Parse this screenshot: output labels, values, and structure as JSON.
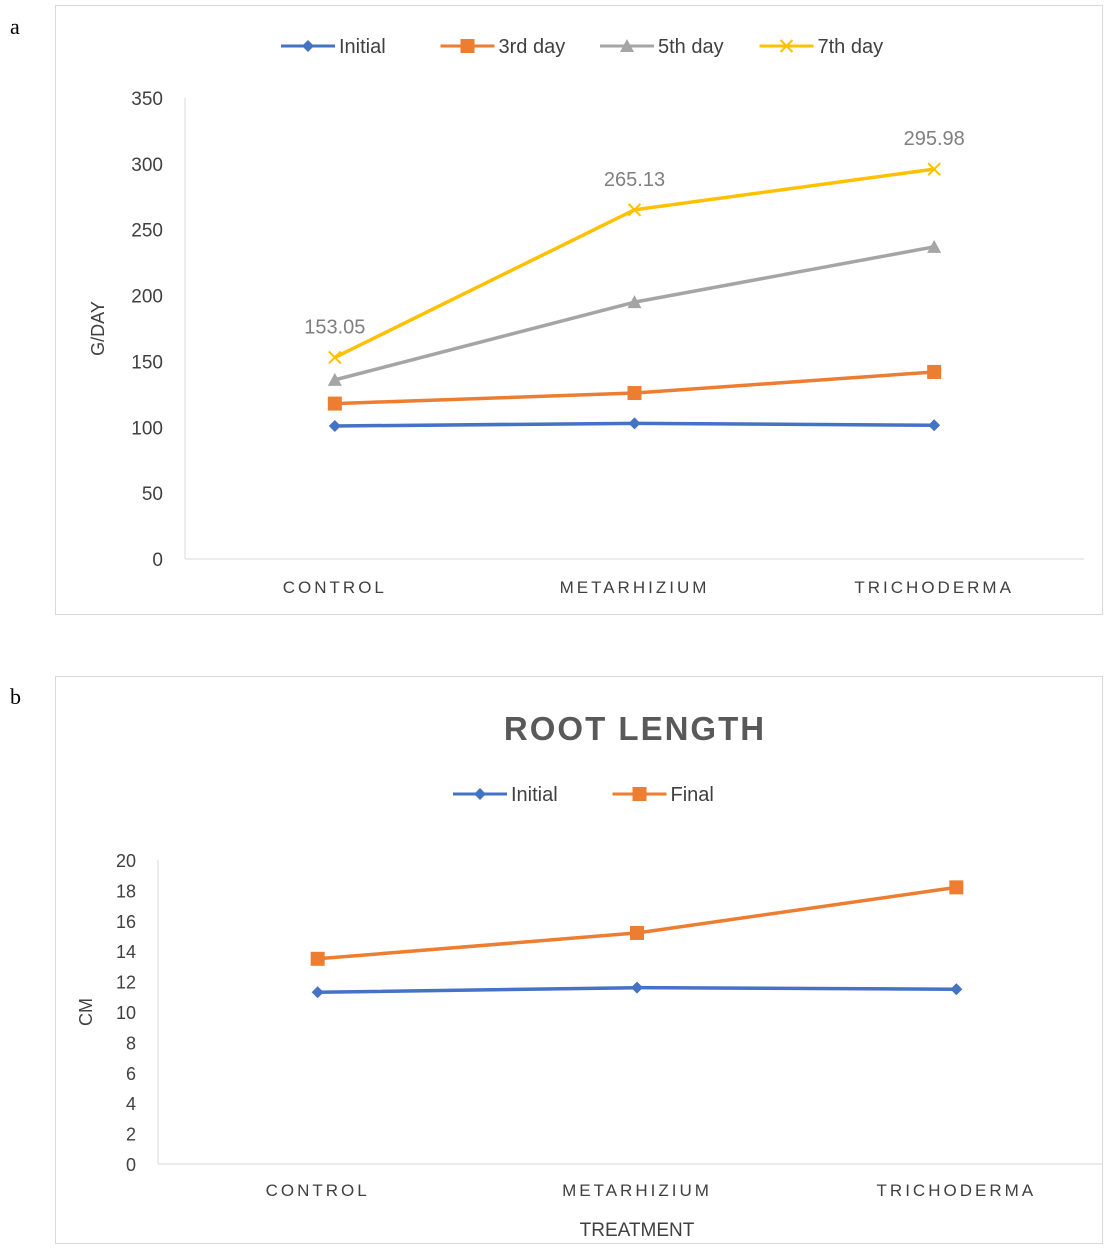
{
  "panels": {
    "a": {
      "letter": "a"
    },
    "b": {
      "letter": "b"
    }
  },
  "chart_data": [
    {
      "type": "line",
      "title": "",
      "xlabel": "",
      "ylabel": "G/DAY",
      "categories": [
        "CONTROL",
        "METARHIZIUM",
        "TRICHODERMA"
      ],
      "ylim": [
        0,
        350
      ],
      "yticks": [
        0,
        50,
        100,
        150,
        200,
        250,
        300,
        350
      ],
      "grid": false,
      "legend": "top",
      "series": [
        {
          "name": "Initial",
          "values": [
            101,
            103,
            101.5
          ],
          "color": "#4472c4",
          "marker": "diamond"
        },
        {
          "name": "3rd day",
          "values": [
            118,
            126,
            142
          ],
          "color": "#ed7d31",
          "marker": "square"
        },
        {
          "name": "5th day",
          "values": [
            136,
            195,
            237
          ],
          "color": "#a5a5a5",
          "marker": "triangle"
        },
        {
          "name": "7th day",
          "values": [
            153.05,
            265.13,
            295.98
          ],
          "color": "#ffc000",
          "marker": "x",
          "labels": [
            "153.05",
            "265.13",
            "295.98"
          ]
        }
      ]
    },
    {
      "type": "line",
      "title": "ROOT LENGTH",
      "xlabel": "TREATMENT",
      "ylabel": "CM",
      "categories": [
        "CONTROL",
        "METARHIZIUM",
        "TRICHODERMA"
      ],
      "ylim": [
        0,
        20
      ],
      "yticks": [
        0,
        2,
        4,
        6,
        8,
        10,
        12,
        14,
        16,
        18,
        20
      ],
      "grid": false,
      "legend": "top",
      "series": [
        {
          "name": "Initial",
          "values": [
            11.3,
            11.6,
            11.5
          ],
          "color": "#4472c4",
          "marker": "diamond"
        },
        {
          "name": "Final",
          "values": [
            13.5,
            15.2,
            18.2
          ],
          "color": "#ed7d31",
          "marker": "square"
        }
      ]
    }
  ]
}
